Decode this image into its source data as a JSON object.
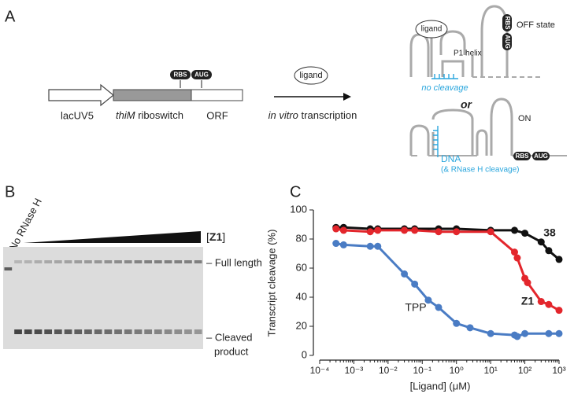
{
  "panel_a": {
    "label": "A",
    "construct": {
      "promoter": "lacUV5",
      "gene": "thiM",
      "riboswitch": "riboswitch",
      "orf": "ORF",
      "rbs": "RBS",
      "aug": "AUG"
    },
    "ligand": "ligand",
    "transcription_italic": "in vitro",
    "transcription": "transcription",
    "off": {
      "state": "OFF state",
      "helix": "P1 helix",
      "result": "no cleavage",
      "rbs": "RBS",
      "aug": "AUG"
    },
    "or": "or",
    "on": {
      "state": "ON",
      "dna": "DNA",
      "result": "(& RNase H cleavage)",
      "rbs": "RBS",
      "aug": "AUG"
    }
  },
  "panel_b": {
    "label": "B",
    "control": "No RNase H",
    "bracket_open": "[",
    "compound": "Z1",
    "bracket_close": "]",
    "band_full": "– Full length",
    "band_cleaved": [
      "– Cleaved",
      "product"
    ]
  },
  "chart_data": {
    "type": "line",
    "panel_label": "C",
    "y_label": "Transcript cleavage (%)",
    "x_label": "[Ligand] (μM)",
    "xscale": "log",
    "xlim": [
      0.0001,
      1000
    ],
    "xticks": [
      {
        "value": 0.0001,
        "label": "10⁻⁴"
      },
      {
        "value": 0.001,
        "label": "10⁻³"
      },
      {
        "value": 0.01,
        "label": "10⁻²"
      },
      {
        "value": 0.1,
        "label": "10⁻¹"
      },
      {
        "value": 1,
        "label": "10⁰"
      },
      {
        "value": 10,
        "label": "10¹"
      },
      {
        "value": 100,
        "label": "10²"
      },
      {
        "value": 1000,
        "label": "10³"
      }
    ],
    "ylim": [
      0,
      100
    ],
    "yticks": [
      0,
      20,
      40,
      60,
      80,
      100
    ],
    "series": [
      {
        "name": "38",
        "color": "#111111",
        "x": [
          0.0003,
          0.0005,
          0.003,
          0.005,
          0.03,
          0.06,
          0.3,
          1,
          10,
          50,
          100,
          300,
          500,
          1000
        ],
        "values": [
          88,
          88,
          87,
          87,
          87,
          87,
          87,
          87,
          86,
          86,
          84,
          78,
          72,
          66
        ]
      },
      {
        "name": "Z1",
        "color": "#e3262c",
        "x": [
          0.0003,
          0.0005,
          0.003,
          0.005,
          0.03,
          0.06,
          0.3,
          1,
          10,
          50,
          60,
          100,
          120,
          300,
          500,
          1000
        ],
        "values": [
          87,
          86,
          85,
          86,
          86,
          86,
          85,
          85,
          85,
          71,
          67,
          53,
          50,
          37,
          35,
          31
        ]
      },
      {
        "name": "TPP",
        "color": "#4a7cc4",
        "x": [
          0.0003,
          0.0005,
          0.003,
          0.005,
          0.03,
          0.06,
          0.15,
          0.3,
          1,
          2.5,
          10,
          50,
          60,
          100,
          500,
          1000
        ],
        "values": [
          77,
          76,
          75,
          75,
          56,
          49,
          38,
          33,
          22,
          19,
          15,
          14,
          13,
          15,
          15,
          15
        ]
      }
    ]
  }
}
